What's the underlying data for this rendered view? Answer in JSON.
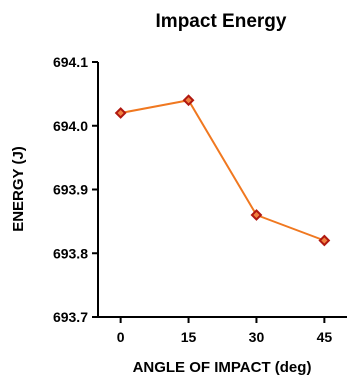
{
  "chart_data": {
    "type": "line",
    "title": "Impact Energy",
    "xlabel": "ANGLE OF IMPACT (deg)",
    "ylabel": "ENERGY (J)",
    "x": [
      0,
      15,
      30,
      45
    ],
    "x_tick_labels": [
      "0",
      "15",
      "30",
      "45"
    ],
    "y_ticks": [
      693.7,
      693.8,
      693.9,
      694.0,
      694.1
    ],
    "y_tick_labels": [
      "693.7",
      "693.8",
      "693.9",
      "694.0",
      "694.1"
    ],
    "ylim": [
      693.7,
      694.1
    ],
    "xlim": [
      -5,
      50
    ],
    "grid": false,
    "series": [
      {
        "values": [
          694.02,
          694.04,
          693.86,
          693.82
        ],
        "line_color": "#f07820",
        "marker": "diamond",
        "marker_edge_color": "#b01810",
        "marker_face_color": "#f08040"
      }
    ]
  }
}
